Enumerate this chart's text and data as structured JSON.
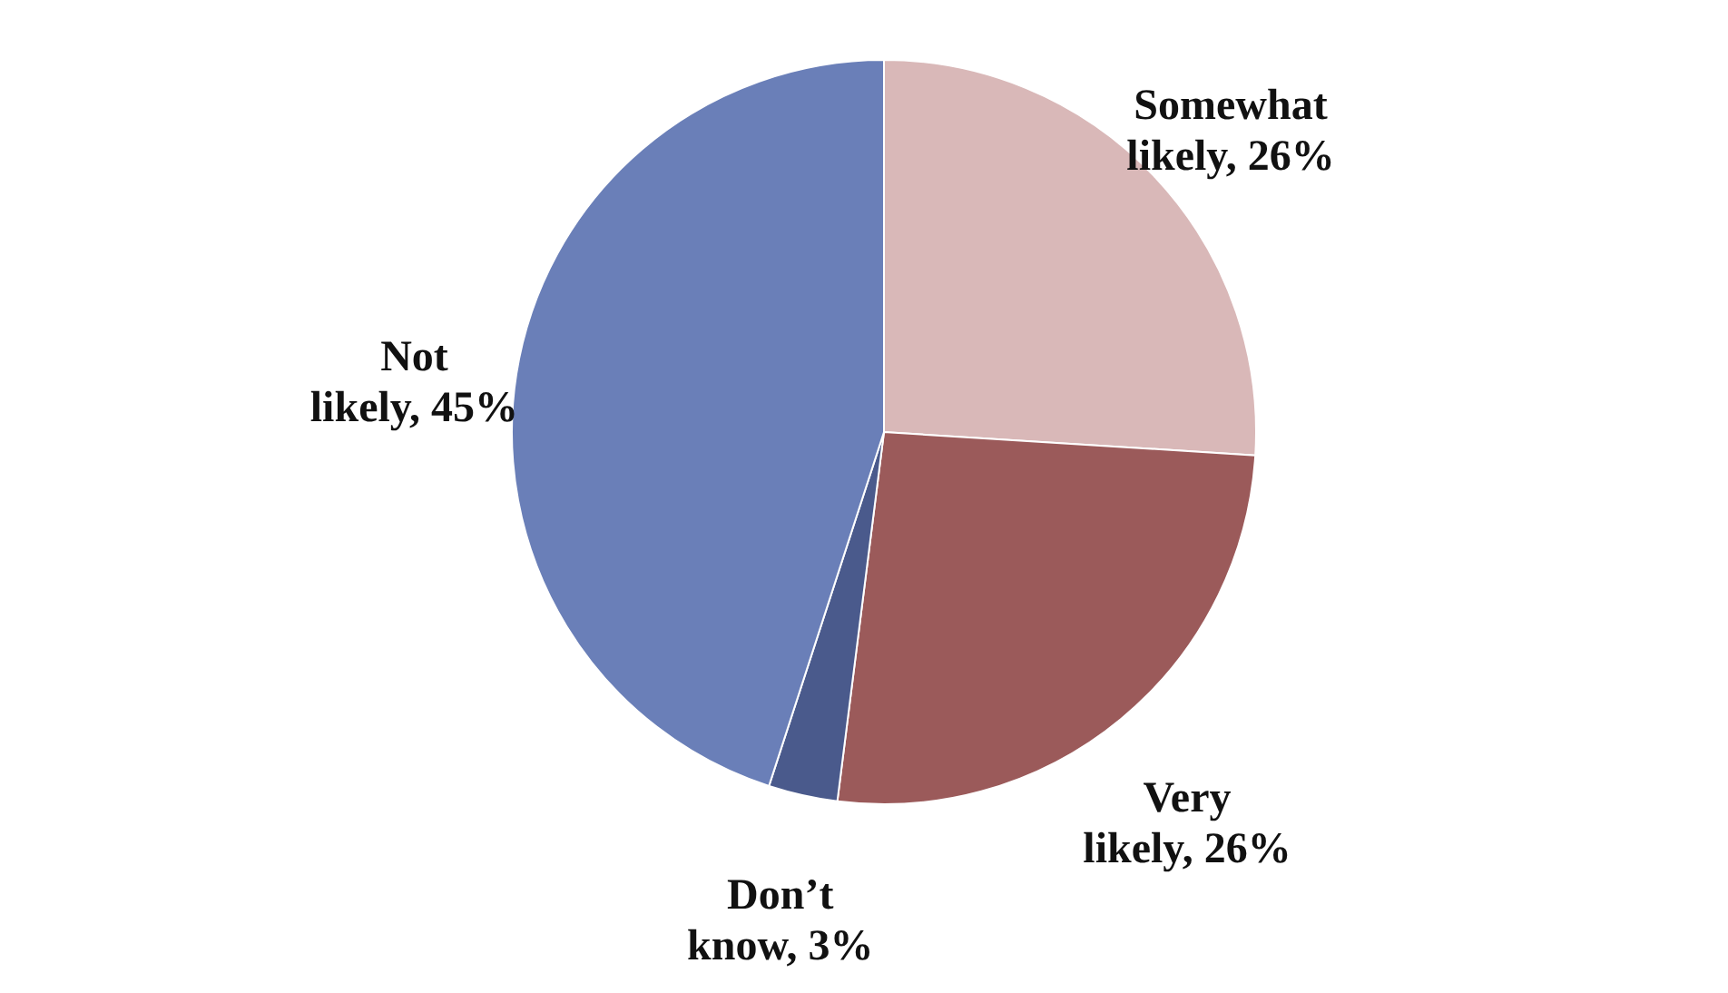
{
  "chart_data": {
    "type": "pie",
    "categories": [
      "Somewhat likely",
      "Very likely",
      "Don’t know",
      "Not likely"
    ],
    "values": [
      26,
      26,
      3,
      45
    ],
    "value_labels": [
      "26%",
      "26%",
      "3%",
      "45%"
    ],
    "colors": [
      "#d9b8b8",
      "#9b5a5a",
      "#4a5a8c",
      "#6a7fb8"
    ]
  }
}
